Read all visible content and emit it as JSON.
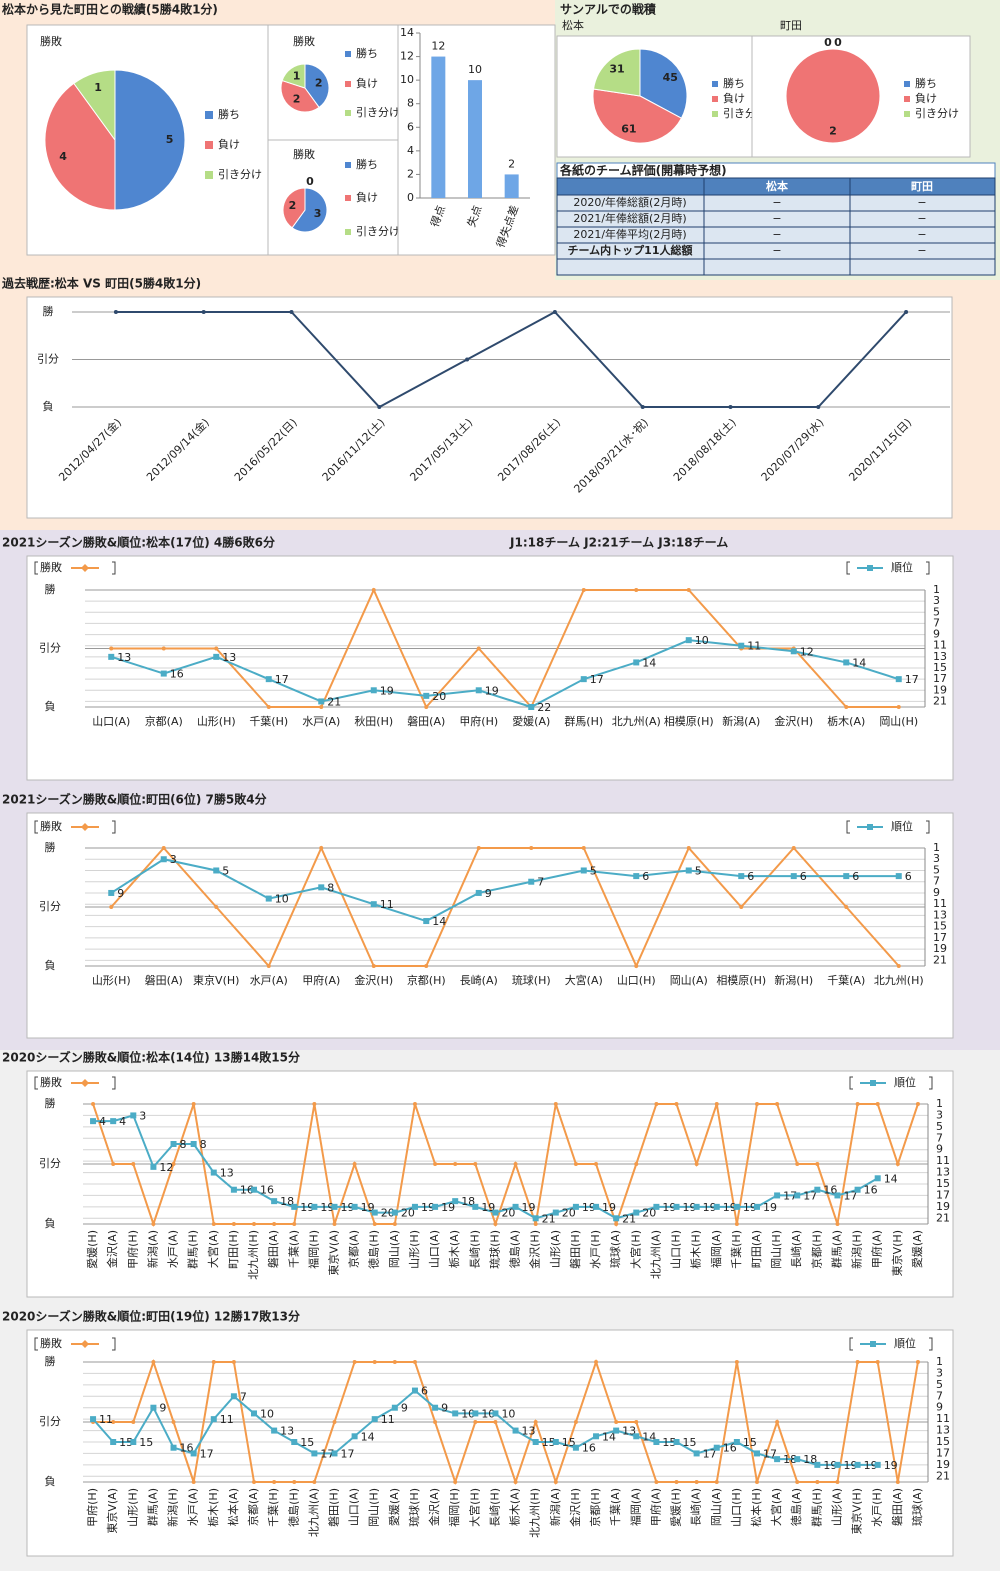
{
  "headings": [
    "松本から見た町田との戦績(5勝4敗1分)",
    "サンアルでの戦積"
  ],
  "table": {
    "title": "各紙のチーム評価(開幕時予想)",
    "columns": [
      "松本",
      "町田"
    ],
    "rows": [
      [
        "2020/年俸総額(2月時)",
        "−",
        "−"
      ],
      [
        "2021/年俸総額(2月時)",
        "−",
        "−"
      ],
      [
        "2021/年俸平均(2月時)",
        "−",
        "−"
      ],
      [
        "チーム内トップ11人総額",
        "−",
        "−"
      ]
    ]
  },
  "chart_data": [
    {
      "type": "pie",
      "title": "勝敗",
      "categories": [
        "勝ち",
        "負け",
        "引き分け"
      ],
      "values": [
        5,
        4,
        1
      ],
      "colors": [
        "#4f86d0",
        "#ef7474",
        "#b5dd86"
      ]
    },
    {
      "type": "pie",
      "title": "勝敗",
      "categories": [
        "勝ち",
        "負け",
        "引き分け"
      ],
      "values": [
        2,
        2,
        1
      ],
      "colors": [
        "#4f86d0",
        "#ef7474",
        "#b5dd86"
      ]
    },
    {
      "type": "pie",
      "title": "勝敗",
      "categories": [
        "勝ち",
        "負け",
        "引き分け"
      ],
      "values": [
        3,
        2,
        0
      ],
      "colors": [
        "#4f86d0",
        "#ef7474",
        "#b5dd86"
      ]
    },
    {
      "type": "bar",
      "categories": [
        "得点",
        "失点",
        "得失点差"
      ],
      "values": [
        12,
        10,
        2
      ],
      "color": "#6ea6e6",
      "ylim": [
        0,
        14
      ],
      "yticks": [
        0,
        2,
        4,
        6,
        8,
        10,
        12,
        14
      ]
    },
    {
      "type": "pie",
      "title": "松本",
      "categories": [
        "勝ち",
        "負け",
        "引き分け"
      ],
      "values": [
        45,
        61,
        31
      ],
      "colors": [
        "#4f86d0",
        "#ef7474",
        "#b5dd86"
      ]
    },
    {
      "type": "pie",
      "title": "町田",
      "categories": [
        "勝ち",
        "負け",
        "引き分け"
      ],
      "values": [
        0,
        2,
        0
      ],
      "colors": [
        "#4f86d0",
        "#ef7474",
        "#b5dd86"
      ]
    },
    {
      "type": "line",
      "title": "過去戦歴:松本 VS 町田(5勝4敗1分)",
      "categories": [
        "2012/04/27(金)",
        "2012/09/14(金)",
        "2016/05/22(日)",
        "2016/11/12(土)",
        "2017/05/13(土)",
        "2017/08/26(土)",
        "2018/03/21(水･祝)",
        "2018/08/18(土)",
        "2020/07/29(水)",
        "2020/11/15(日)"
      ],
      "values": [
        2,
        2,
        2,
        0,
        1,
        2,
        0,
        0,
        0,
        2
      ],
      "color": "#2f4a6d",
      "ylim": [
        0,
        2
      ],
      "yticks": [
        {
          "value": 0,
          "label": "負"
        },
        {
          "value": 1,
          "label": "引分"
        },
        {
          "value": 2,
          "label": "勝"
        }
      ],
      "grid": true
    },
    {
      "type": "line",
      "title": "2021シーズン勝敗&順位:松本(17位) 4勝6敗6分",
      "annotation": "J1:18チーム J2:21チーム J3:18チーム",
      "categories": [
        "山口(A)",
        "京都(A)",
        "山形(H)",
        "千葉(H)",
        "水戸(A)",
        "秋田(H)",
        "磐田(A)",
        "甲府(H)",
        "愛媛(A)",
        "群馬(H)",
        "北九州(A)",
        "相模原(H)",
        "新潟(A)",
        "金沢(H)",
        "栃木(A)",
        "岡山(H)"
      ],
      "series": [
        {
          "name": "勝敗",
          "color": "#f39a4a",
          "values": [
            1,
            1,
            1,
            0,
            0,
            2,
            0,
            1,
            0,
            2,
            2,
            2,
            1,
            1,
            0,
            0
          ]
        },
        {
          "name": "順位",
          "color": "#4bacc6",
          "axis": "y2",
          "data_labels": true,
          "values": [
            13,
            16,
            13,
            17,
            21,
            19,
            20,
            19,
            22,
            17,
            14,
            10,
            11,
            12,
            14,
            17
          ]
        }
      ],
      "ylim": [
        0,
        2
      ],
      "yticks": [
        {
          "value": 0,
          "label": "負"
        },
        {
          "value": 1,
          "label": "引分"
        },
        {
          "value": 2,
          "label": "勝"
        }
      ],
      "y2lim": [
        22,
        1
      ],
      "y2ticks": [
        1,
        3,
        5,
        7,
        9,
        11,
        13,
        15,
        17,
        19,
        21
      ],
      "grid": true,
      "legend": true
    },
    {
      "type": "line",
      "title": "2021シーズン勝敗&順位:町田(6位) 7勝5敗4分",
      "categories": [
        "山形(H)",
        "磐田(A)",
        "東京V(H)",
        "水戸(A)",
        "甲府(A)",
        "金沢(H)",
        "京都(H)",
        "長崎(A)",
        "琉球(H)",
        "大宮(A)",
        "山口(H)",
        "岡山(A)",
        "相模原(H)",
        "新潟(H)",
        "千葉(A)",
        "北九州(H)"
      ],
      "series": [
        {
          "name": "勝敗",
          "color": "#f39a4a",
          "values": [
            1,
            2,
            1,
            0,
            2,
            0,
            0,
            2,
            2,
            2,
            0,
            2,
            1,
            2,
            1,
            0
          ]
        },
        {
          "name": "順位",
          "color": "#4bacc6",
          "axis": "y2",
          "data_labels": true,
          "values": [
            9,
            3,
            5,
            10,
            8,
            11,
            14,
            9,
            7,
            5,
            6,
            5,
            6,
            6,
            6,
            6
          ]
        }
      ],
      "ylim": [
        0,
        2
      ],
      "yticks": [
        {
          "value": 0,
          "label": "負"
        },
        {
          "value": 1,
          "label": "引分"
        },
        {
          "value": 2,
          "label": "勝"
        }
      ],
      "y2lim": [
        22,
        1
      ],
      "y2ticks": [
        1,
        3,
        5,
        7,
        9,
        11,
        13,
        15,
        17,
        19,
        21
      ],
      "grid": true,
      "legend": true
    },
    {
      "type": "line",
      "title": "2020シーズン勝敗&順位:松本(14位) 13勝14敗15分",
      "categories": [
        "愛媛(H)",
        "金沢(A)",
        "甲府(H)",
        "新潟(A)",
        "水戸(A)",
        "群馬(H)",
        "大宮(A)",
        "町田(H)",
        "北九州(H)",
        "磐田(A)",
        "千葉(A)",
        "福岡(H)",
        "東京V(A)",
        "京都(A)",
        "徳島(H)",
        "岡山(A)",
        "山形(H)",
        "山口(A)",
        "栃木(A)",
        "長崎(H)",
        "琉球(H)",
        "徳島(A)",
        "金沢(H)",
        "山形(A)",
        "磐田(H)",
        "水戸(H)",
        "琉球(A)",
        "大宮(H)",
        "北九州(A)",
        "山口(H)",
        "栃木(H)",
        "福岡(A)",
        "千葉(H)",
        "町田(A)",
        "岡山(H)",
        "長崎(A)",
        "京都(H)",
        "群馬(A)",
        "新潟(H)",
        "甲府(A)",
        "東京V(H)",
        "愛媛(A)"
      ],
      "series": [
        {
          "name": "勝敗",
          "color": "#f39a4a",
          "values": [
            2,
            1,
            1,
            0,
            1,
            2,
            0,
            0,
            0,
            0,
            0,
            2,
            0,
            1,
            0,
            0,
            2,
            1,
            1,
            1,
            0,
            1,
            0,
            2,
            1,
            1,
            0,
            1,
            2,
            2,
            1,
            2,
            0,
            2,
            2,
            1,
            1,
            0,
            2,
            2,
            1,
            2
          ]
        },
        {
          "name": "順位",
          "color": "#4bacc6",
          "axis": "y2",
          "data_labels": true,
          "values": [
            4,
            4,
            3,
            12,
            8,
            8,
            13,
            16,
            16,
            18,
            19,
            19,
            19,
            19,
            20,
            20,
            19,
            19,
            18,
            19,
            20,
            19,
            21,
            20,
            19,
            19,
            21,
            20,
            19,
            19,
            19,
            19,
            19,
            19,
            17,
            17,
            16,
            17,
            16,
            14,
            null,
            null
          ]
        }
      ],
      "ylim": [
        0,
        2
      ],
      "yticks": [
        {
          "value": 0,
          "label": "負"
        },
        {
          "value": 1,
          "label": "引分"
        },
        {
          "value": 2,
          "label": "勝"
        }
      ],
      "y2lim": [
        22,
        1
      ],
      "y2ticks": [
        1,
        3,
        5,
        7,
        9,
        11,
        13,
        15,
        17,
        19,
        21
      ],
      "grid": true,
      "legend": true
    },
    {
      "type": "line",
      "title": "2020シーズン勝敗&順位:町田(19位) 12勝17敗13分",
      "categories": [
        "甲府(H)",
        "東京V(A)",
        "山形(H)",
        "群馬(A)",
        "新潟(H)",
        "水戸(A)",
        "栃木(H)",
        "松本(A)",
        "京都(A)",
        "千葉(H)",
        "徳島(H)",
        "北九州(A)",
        "磐田(H)",
        "山口(A)",
        "岡山(H)",
        "愛媛(A)",
        "琉球(H)",
        "金沢(A)",
        "福岡(H)",
        "大宮(H)",
        "長崎(H)",
        "栃木(A)",
        "北九州(H)",
        "新潟(A)",
        "金沢(H)",
        "京都(H)",
        "千葉(A)",
        "福岡(A)",
        "甲府(A)",
        "愛媛(H)",
        "長崎(A)",
        "岡山(A)",
        "山口(H)",
        "松本(H)",
        "大宮(A)",
        "徳島(A)",
        "群馬(H)",
        "山形(A)",
        "東京V(H)",
        "水戸(H)",
        "磐田(A)",
        "琉球(A)"
      ],
      "series": [
        {
          "name": "勝敗",
          "color": "#f39a4a",
          "values": [
            1,
            1,
            1,
            2,
            1,
            0,
            2,
            2,
            0,
            0,
            0,
            0,
            1,
            2,
            2,
            2,
            2,
            1,
            0,
            1,
            1,
            0,
            1,
            0,
            1,
            2,
            1,
            1,
            0,
            0,
            0,
            0,
            2,
            0,
            1,
            0,
            0,
            0,
            2,
            2,
            0,
            2
          ]
        },
        {
          "name": "順位",
          "color": "#4bacc6",
          "axis": "y2",
          "data_labels": true,
          "values": [
            11,
            15,
            15,
            9,
            16,
            17,
            11,
            7,
            10,
            13,
            15,
            17,
            17,
            14,
            11,
            9,
            6,
            9,
            10,
            10,
            10,
            13,
            15,
            15,
            16,
            14,
            13,
            14,
            15,
            15,
            17,
            16,
            15,
            17,
            18,
            18,
            19,
            19,
            19,
            19,
            null,
            null
          ]
        }
      ],
      "ylim": [
        0,
        2
      ],
      "yticks": [
        {
          "value": 0,
          "label": "負"
        },
        {
          "value": 1,
          "label": "引分"
        },
        {
          "value": 2,
          "label": "勝"
        }
      ],
      "y2lim": [
        22,
        1
      ],
      "y2ticks": [
        1,
        3,
        5,
        7,
        9,
        11,
        13,
        15,
        17,
        19,
        21
      ],
      "grid": true,
      "legend": true
    }
  ]
}
